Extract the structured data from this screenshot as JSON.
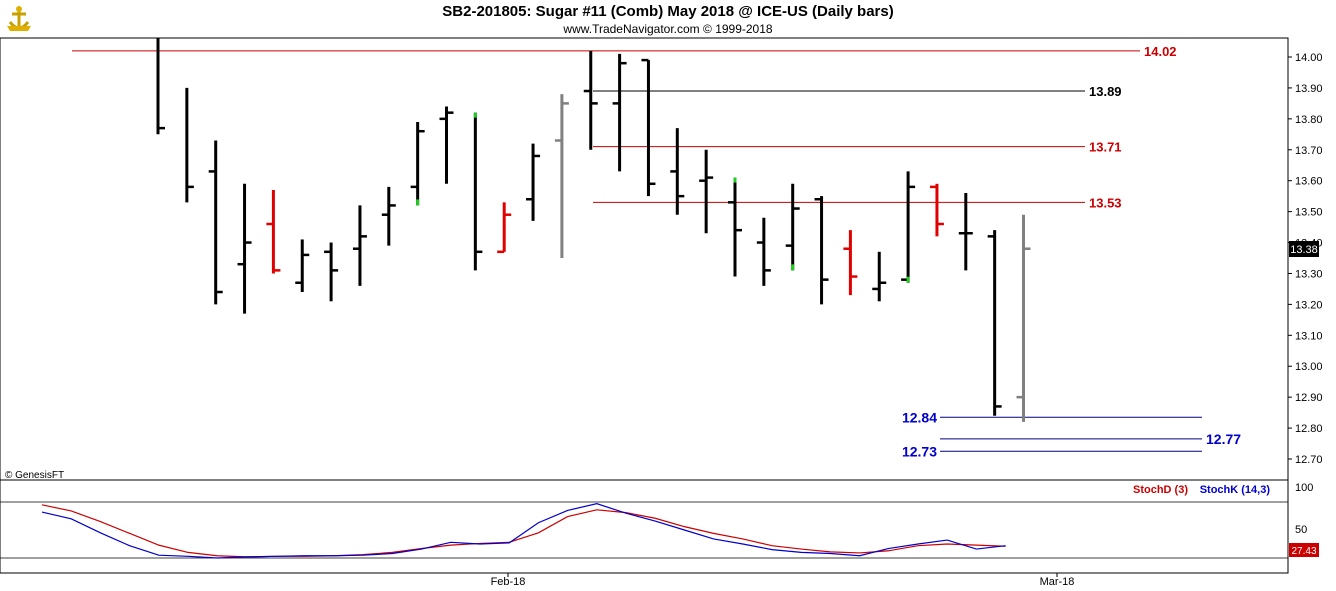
{
  "header": {
    "title": "SB2-201805:  Sugar #11 (Comb) May 2018 @ ICE-US  (Daily bars)",
    "copyright": "www.TradeNavigator.com © 1999-2018",
    "genesis": "© GenesisFT"
  },
  "colors": {
    "up": "#000000",
    "down": "#e00000",
    "neutral": "#808080",
    "green": "#22cc22",
    "blue_line": "#000080",
    "stochK": "#0000cc",
    "stochD": "#cc0000"
  },
  "chart_data": {
    "type": "ohlc",
    "price_axis": {
      "range": [
        12.63,
        14.08
      ],
      "ticks": [
        "14.00",
        "13.90",
        "13.80",
        "13.70",
        "13.60",
        "13.50",
        "13.40",
        "13.30",
        "13.20",
        "13.10",
        "13.00",
        "12.90",
        "12.80",
        "12.70"
      ]
    },
    "last_price": "13.38",
    "x_labels": [
      {
        "label": "Feb-18",
        "bar": 11
      },
      {
        "label": "Mar-18",
        "bar": 34
      }
    ],
    "bars": [
      {
        "h": 14.06,
        "l": 13.75,
        "c": 13.77,
        "color": "up"
      },
      {
        "h": 13.9,
        "l": 13.53,
        "c": 13.58,
        "color": "up"
      },
      {
        "h": 13.73,
        "l": 13.2,
        "o": 13.63,
        "c": 13.24,
        "color": "up"
      },
      {
        "h": 13.59,
        "l": 13.17,
        "o": 13.33,
        "c": 13.4,
        "color": "up"
      },
      {
        "h": 13.57,
        "l": 13.3,
        "o": 13.46,
        "c": 13.31,
        "color": "down"
      },
      {
        "h": 13.41,
        "l": 13.24,
        "o": 13.27,
        "c": 13.36,
        "color": "up"
      },
      {
        "h": 13.4,
        "l": 13.21,
        "o": 13.37,
        "c": 13.31,
        "color": "up"
      },
      {
        "h": 13.52,
        "l": 13.26,
        "o": 13.38,
        "c": 13.42,
        "color": "up"
      },
      {
        "h": 13.58,
        "l": 13.39,
        "o": 13.49,
        "c": 13.52,
        "color": "up"
      },
      {
        "h": 13.79,
        "l": 13.52,
        "o": 13.58,
        "c": 13.76,
        "color": "up",
        "mark": "low"
      },
      {
        "h": 13.84,
        "l": 13.59,
        "o": 13.8,
        "c": 13.82,
        "color": "up"
      },
      {
        "h": 13.82,
        "l": 13.31,
        "c": 13.37,
        "color": "up",
        "mark": "high"
      },
      {
        "h": 13.53,
        "l": 13.37,
        "o": 13.37,
        "c": 13.49,
        "color": "down"
      },
      {
        "h": 13.72,
        "l": 13.47,
        "o": 13.54,
        "c": 13.68,
        "color": "up"
      },
      {
        "h": 13.88,
        "l": 13.35,
        "o": 13.73,
        "c": 13.85,
        "color": "neutral"
      },
      {
        "h": 14.02,
        "l": 13.7,
        "o": 13.89,
        "c": 13.85,
        "color": "up"
      },
      {
        "h": 14.01,
        "l": 13.63,
        "o": 13.85,
        "c": 13.98,
        "color": "up"
      },
      {
        "h": 13.99,
        "l": 13.55,
        "o": 13.99,
        "c": 13.59,
        "color": "up"
      },
      {
        "h": 13.77,
        "l": 13.49,
        "o": 13.63,
        "c": 13.55,
        "color": "up"
      },
      {
        "h": 13.7,
        "l": 13.43,
        "o": 13.6,
        "c": 13.61,
        "color": "up"
      },
      {
        "h": 13.61,
        "l": 13.29,
        "o": 13.53,
        "c": 13.44,
        "color": "up",
        "mark": "high"
      },
      {
        "h": 13.48,
        "l": 13.26,
        "o": 13.4,
        "c": 13.31,
        "color": "up"
      },
      {
        "h": 13.59,
        "l": 13.31,
        "o": 13.39,
        "c": 13.51,
        "color": "up",
        "mark": "low"
      },
      {
        "h": 13.55,
        "l": 13.2,
        "o": 13.54,
        "c": 13.28,
        "color": "up"
      },
      {
        "h": 13.44,
        "l": 13.23,
        "o": 13.38,
        "c": 13.29,
        "color": "down"
      },
      {
        "h": 13.37,
        "l": 13.21,
        "o": 13.25,
        "c": 13.27,
        "color": "up"
      },
      {
        "h": 13.63,
        "l": 13.27,
        "o": 13.28,
        "c": 13.58,
        "color": "up",
        "mark": "low"
      },
      {
        "h": 13.59,
        "l": 13.42,
        "o": 13.58,
        "c": 13.46,
        "color": "down"
      },
      {
        "h": 13.56,
        "l": 13.31,
        "o": 13.43,
        "c": 13.43,
        "color": "up"
      },
      {
        "h": 13.44,
        "l": 12.84,
        "o": 13.42,
        "c": 12.87,
        "color": "up"
      },
      {
        "h": 13.49,
        "l": 12.82,
        "o": 12.9,
        "c": 13.38,
        "color": "neutral"
      }
    ],
    "levels": [
      {
        "label": "14.02",
        "value": 14.02,
        "color": "#cc0000",
        "from": 2,
        "to": 38,
        "text_at": 37
      },
      {
        "label": "13.89",
        "value": 13.89,
        "color": "#000000",
        "from": 14,
        "to": 35,
        "text_at": 35
      },
      {
        "label": "13.71",
        "value": 13.71,
        "color": "#cc0000",
        "from": 14,
        "to": 35,
        "text_at": 35
      },
      {
        "label": "13.53",
        "value": 13.53,
        "color": "#cc0000",
        "from": 15,
        "to": 35,
        "text_at": 35
      },
      {
        "label": "12.84",
        "value": 12.835,
        "color": "#000080",
        "text_color": "#0000cc",
        "from": 26,
        "to": 38,
        "text_side": "left"
      },
      {
        "label": "12.77",
        "value": 12.765,
        "color": "#000080",
        "text_color": "#0000cc",
        "from": 26,
        "to": 38,
        "text_side": "right"
      },
      {
        "label": "12.73",
        "value": 12.725,
        "color": "#000080",
        "text_color": "#0000cc",
        "from": 26,
        "to": 38,
        "text_side": "left"
      }
    ],
    "stochastic": {
      "axis": {
        "range": [
          0,
          100
        ],
        "ticks": [
          "100",
          "50"
        ]
      },
      "last_value": "27.43",
      "legend": [
        {
          "name": "StochD (3)",
          "color": "#cc0000"
        },
        {
          "name": "StochK (14,3)",
          "color": "#0000cc"
        }
      ],
      "k": [
        82,
        70,
        45,
        22,
        5,
        3,
        0,
        2,
        3,
        4,
        4,
        5,
        8,
        16,
        28,
        25,
        27,
        63,
        85,
        97,
        80,
        66,
        50,
        34,
        25,
        15,
        10,
        8,
        4,
        17,
        25,
        32,
        16,
        22
      ],
      "d": [
        95,
        84,
        65,
        44,
        23,
        10,
        4,
        2,
        3,
        3,
        4,
        6,
        10,
        17,
        23,
        26,
        28,
        45,
        74,
        86,
        81,
        71,
        56,
        44,
        34,
        22,
        16,
        11,
        9,
        13,
        22,
        25,
        23,
        21
      ]
    }
  }
}
